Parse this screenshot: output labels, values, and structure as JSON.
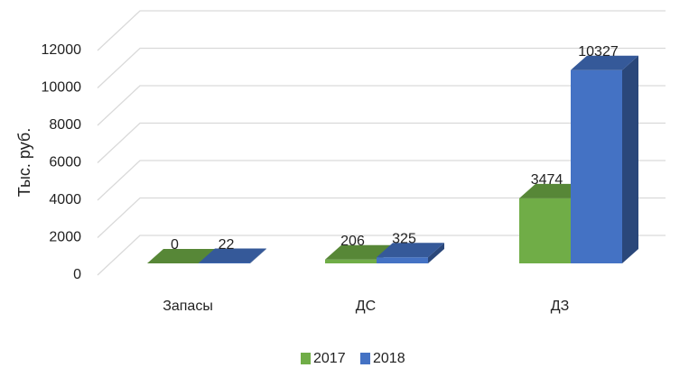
{
  "chart_data": {
    "type": "bar3d",
    "y_axis_label": "Тыс. руб.",
    "categories": [
      "Запасы",
      "ДС",
      "ДЗ"
    ],
    "series": [
      {
        "name": "2017",
        "color": "#70ad47",
        "values": [
          0,
          206,
          3474
        ]
      },
      {
        "name": "2018",
        "color": "#4472c4",
        "values": [
          22,
          325,
          10327
        ]
      }
    ],
    "ylim": [
      0,
      12000
    ],
    "yticks": [
      0,
      2000,
      4000,
      6000,
      8000,
      10000,
      12000
    ],
    "grid": true,
    "legend": "bottom"
  }
}
